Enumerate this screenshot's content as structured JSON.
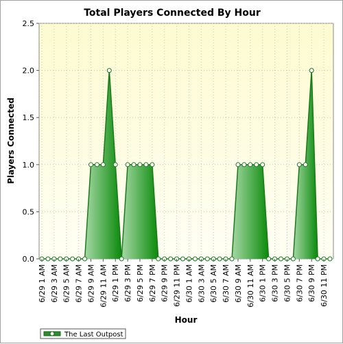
{
  "chart_data": {
    "type": "area",
    "title": "Total Players Connected By Hour",
    "xlabel": "Hour",
    "ylabel": "Players Connected",
    "ylim": [
      0,
      2.5
    ],
    "yticks": [
      "0.0",
      "0.5",
      "1.0",
      "1.5",
      "2.0",
      "2.5"
    ],
    "grid": true,
    "legend_position": "bottom-left",
    "x_tick_labels": [
      "6/29 1 AM",
      "6/29 3 AM",
      "6/29 5 AM",
      "6/29 7 AM",
      "6/29 9 AM",
      "6/29 11 AM",
      "6/29 1 PM",
      "6/29 3 PM",
      "6/29 5 PM",
      "6/29 7 PM",
      "6/29 9 PM",
      "6/29 11 PM",
      "6/30 1 AM",
      "6/30 3 AM",
      "6/30 5 AM",
      "6/30 7 AM",
      "6/30 9 AM",
      "6/30 11 AM",
      "6/30 1 PM",
      "6/30 3 PM",
      "6/30 5 PM",
      "6/30 7 PM",
      "6/30 9 PM",
      "6/30 11 PM"
    ],
    "series": [
      {
        "name": "The Last Outpost",
        "color": "#2e8b2e",
        "values": [
          0,
          0,
          0,
          0,
          0,
          0,
          0,
          0,
          1,
          1,
          1,
          2,
          1,
          0,
          1,
          1,
          1,
          1,
          1,
          0,
          0,
          0,
          0,
          0,
          0,
          0,
          0,
          0,
          0,
          0,
          0,
          0,
          1,
          1,
          1,
          1,
          1,
          0,
          0,
          0,
          0,
          0,
          1,
          1,
          2,
          0,
          0,
          0
        ]
      }
    ]
  }
}
